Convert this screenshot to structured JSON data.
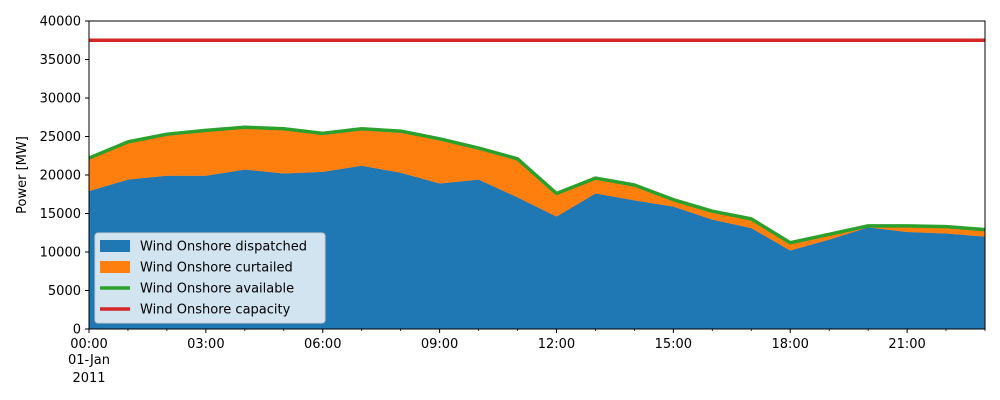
{
  "chart_data": {
    "type": "area",
    "title": "",
    "xlabel": "",
    "ylabel": "Power [MW]",
    "ylim": [
      0,
      40000
    ],
    "yticks": [
      0,
      5000,
      10000,
      15000,
      20000,
      25000,
      30000,
      35000,
      40000
    ],
    "xlim": [
      "2011-01-01 00:00",
      "2011-01-01 23:00"
    ],
    "xticks": [
      {
        "at": "00:00",
        "label": "00:00",
        "sub1": "01-Jan",
        "sub2": "2011"
      },
      {
        "at": "03:00",
        "label": "03:00"
      },
      {
        "at": "06:00",
        "label": "06:00"
      },
      {
        "at": "09:00",
        "label": "09:00"
      },
      {
        "at": "12:00",
        "label": "12:00"
      },
      {
        "at": "15:00",
        "label": "15:00"
      },
      {
        "at": "18:00",
        "label": "18:00"
      },
      {
        "at": "21:00",
        "label": "21:00"
      }
    ],
    "x": [
      "00:00",
      "01:00",
      "02:00",
      "03:00",
      "04:00",
      "05:00",
      "06:00",
      "07:00",
      "08:00",
      "09:00",
      "10:00",
      "11:00",
      "12:00",
      "13:00",
      "14:00",
      "15:00",
      "16:00",
      "17:00",
      "18:00",
      "19:00",
      "20:00",
      "21:00",
      "22:00",
      "23:00"
    ],
    "series": [
      {
        "name": "Wind Onshore dispatched",
        "kind": "area",
        "color": "#1f77b4",
        "values": [
          17900,
          19400,
          19900,
          19900,
          20700,
          20200,
          20400,
          21200,
          20300,
          18900,
          19400,
          17100,
          14600,
          17600,
          16700,
          15900,
          14200,
          13100,
          10200,
          11600,
          13200,
          12600,
          12400,
          12000
        ]
      },
      {
        "name": "Wind Onshore curtailed",
        "kind": "area",
        "color": "#ff7f0e",
        "values": [
          4300,
          4900,
          5400,
          5900,
          5500,
          5800,
          5000,
          4800,
          5400,
          5800,
          4100,
          5000,
          3000,
          2000,
          2000,
          900,
          1100,
          1200,
          1000,
          700,
          200,
          800,
          900,
          900
        ]
      },
      {
        "name": "Wind Onshore available",
        "kind": "line",
        "color": "#2ca02c",
        "values": [
          22200,
          24300,
          25300,
          25800,
          26200,
          26000,
          25400,
          26000,
          25700,
          24700,
          23500,
          22100,
          17600,
          19600,
          18700,
          16800,
          15300,
          14300,
          11200,
          12300,
          13400,
          13400,
          13300,
          12900
        ]
      },
      {
        "name": "Wind Onshore capacity",
        "kind": "line",
        "color": "#d62728",
        "values": [
          37500,
          37500,
          37500,
          37500,
          37500,
          37500,
          37500,
          37500,
          37500,
          37500,
          37500,
          37500,
          37500,
          37500,
          37500,
          37500,
          37500,
          37500,
          37500,
          37500,
          37500,
          37500,
          37500,
          37500
        ]
      }
    ],
    "legend_position": "lower-left",
    "grid": false
  }
}
